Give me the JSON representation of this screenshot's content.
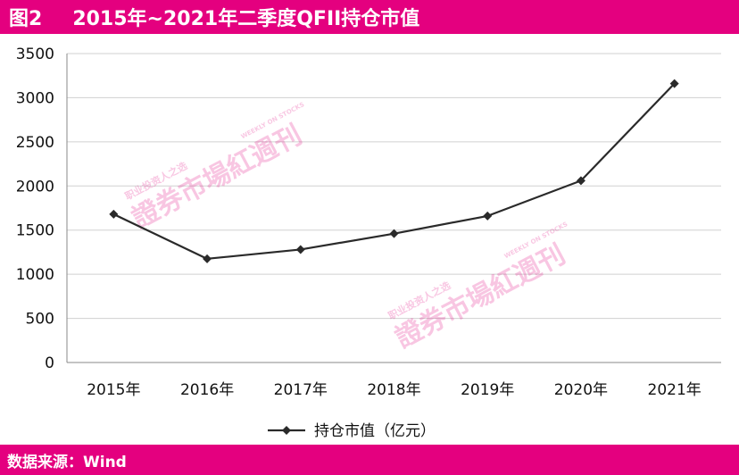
{
  "header": {
    "figure_label": "图2",
    "title": "2015年~2021年二季度QFII持仓市值"
  },
  "footer": {
    "source": "数据来源：Wind"
  },
  "watermark": {
    "name": "證券市場紅週刊",
    "tagline": "职业投资人之选",
    "english": "WEEKLY ON STOCKS"
  },
  "colors": {
    "accent": "#e4007f",
    "line": "#2a2a2a"
  },
  "chart_data": {
    "type": "line",
    "categories": [
      "2015年",
      "2016年",
      "2017年",
      "2018年",
      "2019年",
      "2020年",
      "2021年"
    ],
    "series": [
      {
        "name": "持仓市值（亿元）",
        "values": [
          1680,
          1175,
          1280,
          1460,
          1660,
          2060,
          3160
        ]
      }
    ],
    "ylim": [
      0,
      3500
    ],
    "yticks": [
      0,
      500,
      1000,
      1500,
      2000,
      2500,
      3000,
      3500
    ],
    "grid": true,
    "legend": "bottom"
  }
}
